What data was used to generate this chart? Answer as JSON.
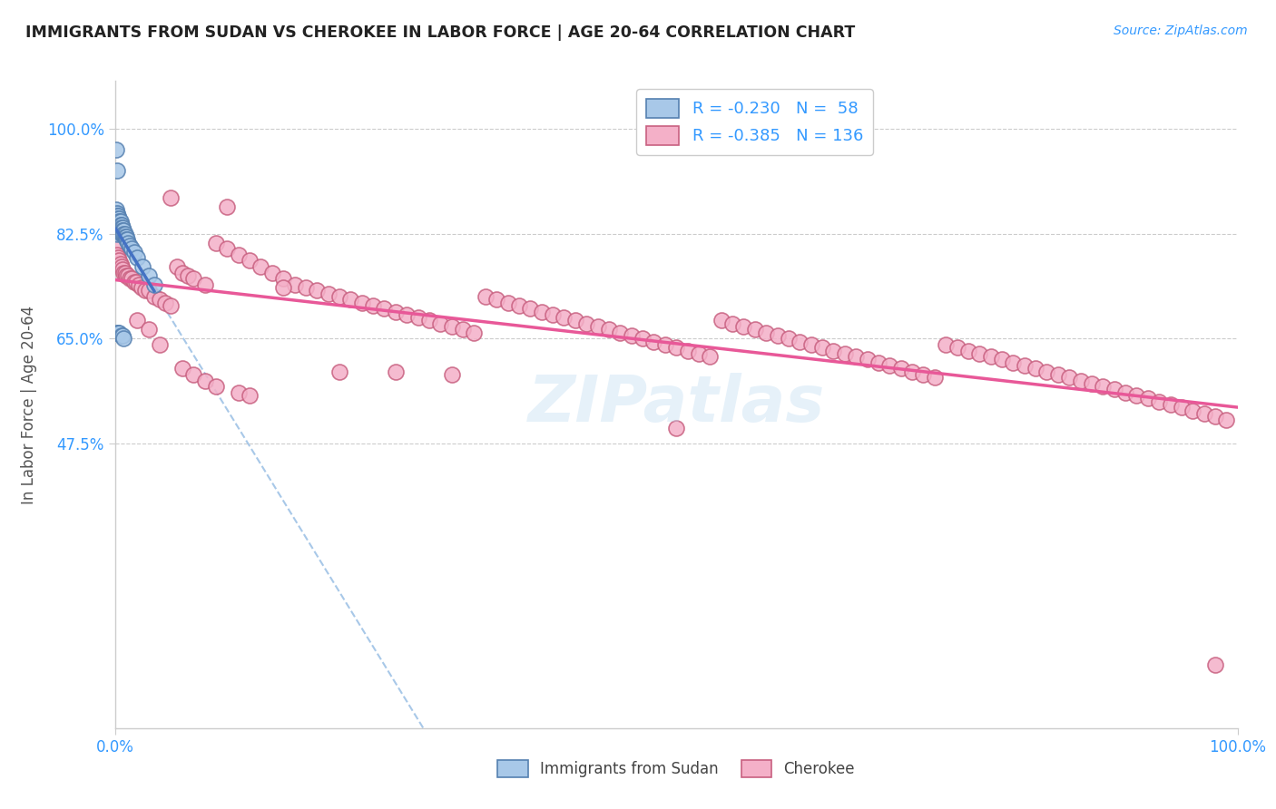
{
  "title": "IMMIGRANTS FROM SUDAN VS CHEROKEE IN LABOR FORCE | AGE 20-64 CORRELATION CHART",
  "source": "Source: ZipAtlas.com",
  "ylabel": "In Labor Force | Age 20-64",
  "xlim": [
    0.0,
    1.0
  ],
  "ylim": [
    0.0,
    1.08
  ],
  "ytick_vals": [
    0.475,
    0.65,
    0.825,
    1.0
  ],
  "ytick_labels": [
    "47.5%",
    "65.0%",
    "82.5%",
    "100.0%"
  ],
  "xtick_vals": [
    0.0,
    1.0
  ],
  "xtick_labels": [
    "0.0%",
    "100.0%"
  ],
  "r_blue": "-0.230",
  "n_blue": "58",
  "r_pink": "-0.385",
  "n_pink": "136",
  "blue_fill": "#a8c8e8",
  "blue_edge": "#5580b0",
  "blue_line": "#4472c4",
  "pink_fill": "#f4b0c8",
  "pink_edge": "#c86080",
  "pink_line": "#e85898",
  "dash_color": "#a8c8e8",
  "tick_color": "#3399ff",
  "grid_color": "#cccccc",
  "label_bottom1": "Immigrants from Sudan",
  "label_bottom2": "Cherokee",
  "watermark": "ZIPatlas",
  "blue_x": [
    0.001,
    0.001,
    0.001,
    0.001,
    0.001,
    0.002,
    0.002,
    0.002,
    0.002,
    0.002,
    0.002,
    0.002,
    0.002,
    0.003,
    0.003,
    0.003,
    0.003,
    0.003,
    0.003,
    0.004,
    0.004,
    0.004,
    0.004,
    0.004,
    0.005,
    0.005,
    0.005,
    0.005,
    0.006,
    0.006,
    0.006,
    0.006,
    0.007,
    0.007,
    0.007,
    0.008,
    0.008,
    0.009,
    0.009,
    0.01,
    0.01,
    0.011,
    0.012,
    0.013,
    0.015,
    0.017,
    0.02,
    0.025,
    0.03,
    0.035,
    0.001,
    0.002,
    0.002,
    0.003,
    0.004,
    0.006,
    0.007,
    0.008
  ],
  "blue_y": [
    0.855,
    0.86,
    0.865,
    0.858,
    0.85,
    0.86,
    0.855,
    0.85,
    0.845,
    0.84,
    0.835,
    0.83,
    0.825,
    0.855,
    0.85,
    0.845,
    0.84,
    0.835,
    0.83,
    0.85,
    0.845,
    0.84,
    0.835,
    0.83,
    0.845,
    0.84,
    0.835,
    0.83,
    0.84,
    0.835,
    0.83,
    0.825,
    0.835,
    0.83,
    0.825,
    0.83,
    0.825,
    0.825,
    0.82,
    0.82,
    0.815,
    0.815,
    0.81,
    0.805,
    0.8,
    0.795,
    0.785,
    0.77,
    0.755,
    0.74,
    0.965,
    0.93,
    0.66,
    0.66,
    0.66,
    0.655,
    0.655,
    0.65
  ],
  "pink_x": [
    0.001,
    0.002,
    0.003,
    0.004,
    0.005,
    0.006,
    0.007,
    0.008,
    0.009,
    0.01,
    0.012,
    0.013,
    0.015,
    0.017,
    0.019,
    0.021,
    0.024,
    0.027,
    0.03,
    0.035,
    0.04,
    0.045,
    0.05,
    0.055,
    0.06,
    0.065,
    0.07,
    0.08,
    0.09,
    0.1,
    0.11,
    0.12,
    0.13,
    0.14,
    0.15,
    0.16,
    0.17,
    0.18,
    0.19,
    0.2,
    0.21,
    0.22,
    0.23,
    0.24,
    0.25,
    0.26,
    0.27,
    0.28,
    0.29,
    0.3,
    0.31,
    0.32,
    0.33,
    0.34,
    0.35,
    0.36,
    0.37,
    0.38,
    0.39,
    0.4,
    0.41,
    0.42,
    0.43,
    0.44,
    0.45,
    0.46,
    0.47,
    0.48,
    0.49,
    0.5,
    0.51,
    0.52,
    0.53,
    0.54,
    0.55,
    0.56,
    0.57,
    0.58,
    0.59,
    0.6,
    0.61,
    0.62,
    0.63,
    0.64,
    0.65,
    0.66,
    0.67,
    0.68,
    0.69,
    0.7,
    0.71,
    0.72,
    0.73,
    0.74,
    0.75,
    0.76,
    0.77,
    0.78,
    0.79,
    0.8,
    0.81,
    0.82,
    0.83,
    0.84,
    0.85,
    0.86,
    0.87,
    0.88,
    0.89,
    0.9,
    0.91,
    0.92,
    0.93,
    0.94,
    0.95,
    0.96,
    0.97,
    0.98,
    0.99,
    0.05,
    0.1,
    0.15,
    0.2,
    0.25,
    0.3,
    0.02,
    0.03,
    0.04,
    0.06,
    0.07,
    0.08,
    0.09,
    0.11,
    0.12,
    0.98,
    0.5
  ],
  "pink_y": [
    0.8,
    0.79,
    0.785,
    0.78,
    0.775,
    0.77,
    0.765,
    0.76,
    0.76,
    0.755,
    0.755,
    0.75,
    0.75,
    0.745,
    0.745,
    0.74,
    0.735,
    0.73,
    0.73,
    0.72,
    0.715,
    0.71,
    0.705,
    0.77,
    0.76,
    0.755,
    0.75,
    0.74,
    0.81,
    0.8,
    0.79,
    0.78,
    0.77,
    0.76,
    0.75,
    0.74,
    0.735,
    0.73,
    0.725,
    0.72,
    0.715,
    0.71,
    0.705,
    0.7,
    0.695,
    0.69,
    0.685,
    0.68,
    0.675,
    0.67,
    0.665,
    0.66,
    0.72,
    0.715,
    0.71,
    0.705,
    0.7,
    0.695,
    0.69,
    0.685,
    0.68,
    0.675,
    0.67,
    0.665,
    0.66,
    0.655,
    0.65,
    0.645,
    0.64,
    0.635,
    0.63,
    0.625,
    0.62,
    0.68,
    0.675,
    0.67,
    0.665,
    0.66,
    0.655,
    0.65,
    0.645,
    0.64,
    0.635,
    0.63,
    0.625,
    0.62,
    0.615,
    0.61,
    0.605,
    0.6,
    0.595,
    0.59,
    0.585,
    0.64,
    0.635,
    0.63,
    0.625,
    0.62,
    0.615,
    0.61,
    0.605,
    0.6,
    0.595,
    0.59,
    0.585,
    0.58,
    0.575,
    0.57,
    0.565,
    0.56,
    0.555,
    0.55,
    0.545,
    0.54,
    0.535,
    0.53,
    0.525,
    0.52,
    0.515,
    0.885,
    0.87,
    0.735,
    0.595,
    0.595,
    0.59,
    0.68,
    0.665,
    0.64,
    0.6,
    0.59,
    0.58,
    0.57,
    0.56,
    0.555,
    0.105,
    0.5
  ]
}
